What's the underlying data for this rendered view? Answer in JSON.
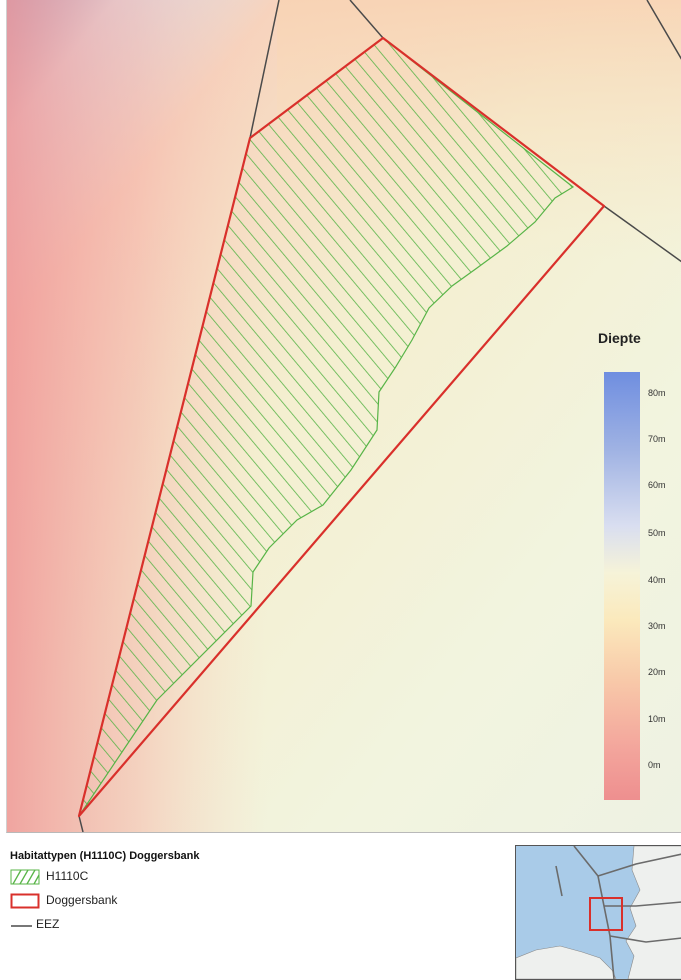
{
  "depth_legend": {
    "title": "Diepte",
    "ticks": [
      "80m",
      "70m",
      "60m",
      "50m",
      "40m",
      "30m",
      "20m",
      "10m",
      "0m"
    ]
  },
  "legend": {
    "title": "Habitattypen (H1110C) Doggersbank",
    "items": [
      {
        "label": "H1110C",
        "symbol": "green-hatch"
      },
      {
        "label": "Doggersbank",
        "symbol": "red-outline"
      },
      {
        "label": "EEZ",
        "symbol": "gray-line"
      }
    ]
  },
  "colors": {
    "doggersbank_outline": "#d9302b",
    "habitat_hatch": "#58b447",
    "eez_line": "#4a4a4a",
    "deep": "#6f8ee0",
    "shallow": "#ee8f8f"
  }
}
